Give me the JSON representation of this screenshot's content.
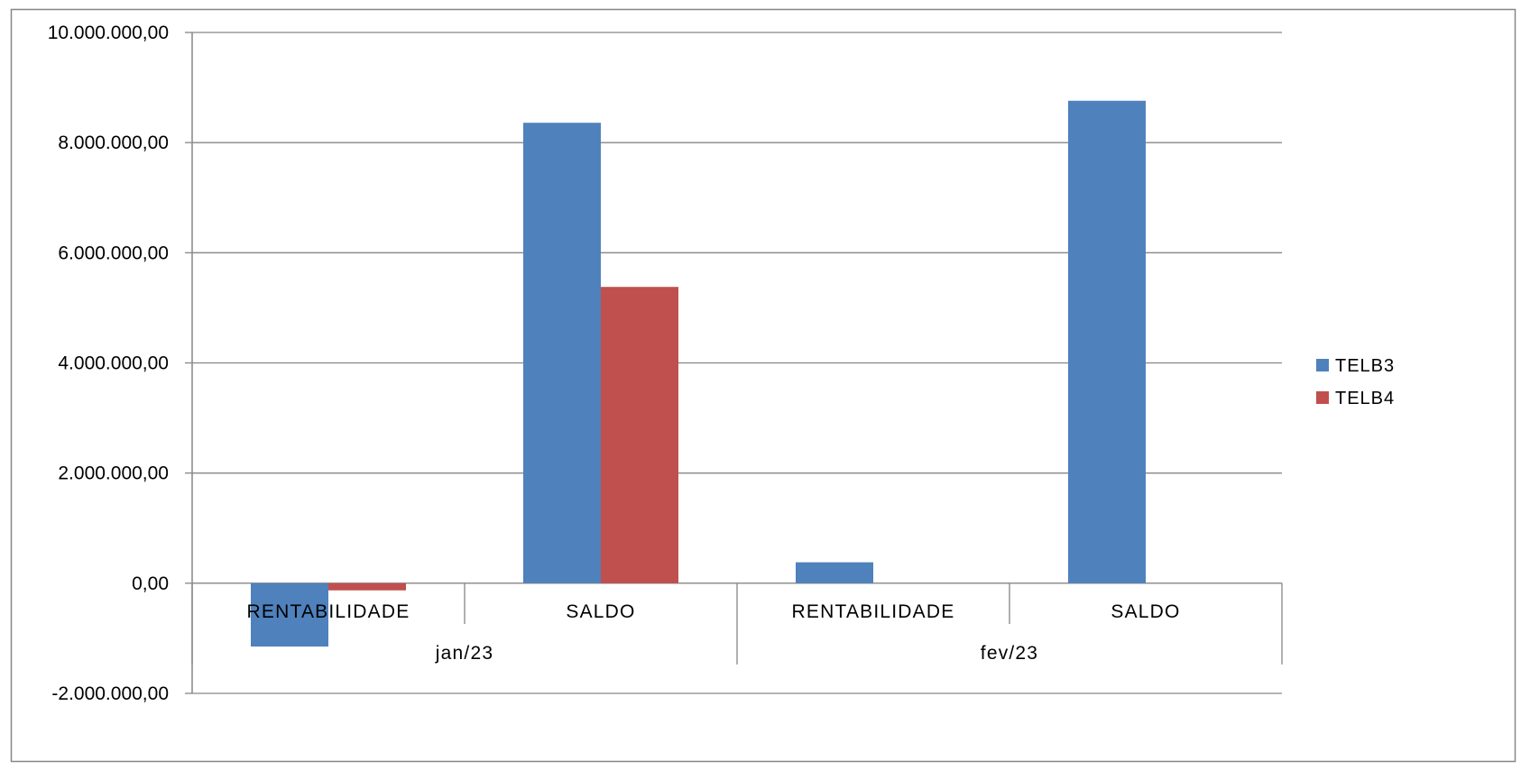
{
  "chart_data": {
    "type": "bar",
    "title": "",
    "xlabel": "",
    "ylabel": "",
    "ylim": [
      -2000000,
      10000000
    ],
    "yticks": [
      -2000000,
      0,
      2000000,
      4000000,
      6000000,
      8000000,
      10000000
    ],
    "ytick_labels": [
      "-2.000.000,00",
      "0,00",
      "2.000.000,00",
      "4.000.000,00",
      "6.000.000,00",
      "8.000.000,00",
      "10.000.000,00"
    ],
    "grid": true,
    "legend_position": "right",
    "groups": [
      {
        "label": "jan/23",
        "categories": [
          "RENTABILIDADE",
          "SALDO"
        ]
      },
      {
        "label": "fev/23",
        "categories": [
          "RENTABILIDADE",
          "SALDO"
        ]
      }
    ],
    "categories": [
      "RENTABILIDADE",
      "SALDO",
      "RENTABILIDADE",
      "SALDO"
    ],
    "series": [
      {
        "name": "TELB3",
        "color": "#4F81BD",
        "values": [
          -1150000,
          8360000,
          380000,
          8760000
        ]
      },
      {
        "name": "TELB4",
        "color": "#C0504D",
        "values": [
          -130000,
          5380000,
          null,
          null
        ]
      }
    ]
  }
}
